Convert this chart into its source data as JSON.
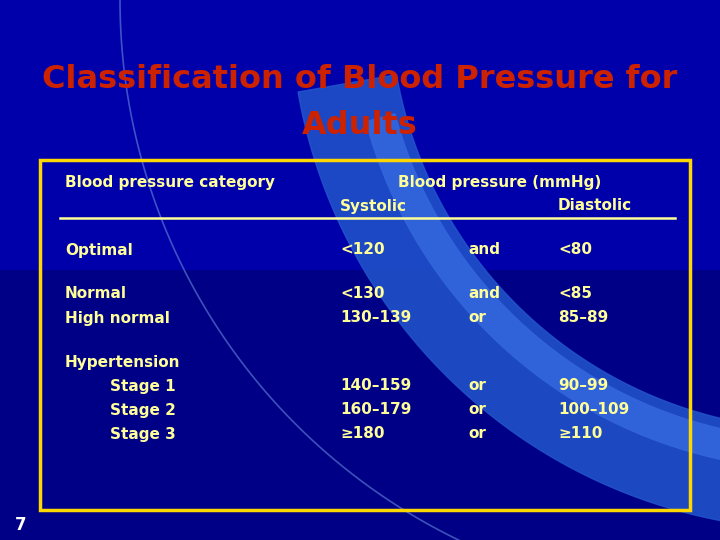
{
  "title_line1": "Classification of Blood Pressure for",
  "title_line2": "Adults",
  "title_color": "#CC2200",
  "bg_color": "#0000AA",
  "bg_dark": "#000066",
  "table_border_color": "#FFD700",
  "text_color": "#FFFF99",
  "header_col1": "Blood pressure category",
  "header_mmhg": "Blood pressure (mmHg)",
  "header_systolic": "Systolic",
  "header_diastolic": "Diastolic",
  "page_number": "7",
  "swoosh_color": "#2255CC",
  "swoosh_color2": "#3366DD",
  "rows": [
    {
      "category": "Optimal",
      "indent": 0,
      "systolic": "<120",
      "connector": "and",
      "diastolic": "<80"
    },
    {
      "category": "Normal",
      "indent": 0,
      "systolic": "<130",
      "connector": "and",
      "diastolic": "<85"
    },
    {
      "category": "High normal",
      "indent": 0,
      "systolic": "130–139",
      "connector": "or",
      "diastolic": "85–89"
    },
    {
      "category": "Hypertension",
      "indent": 0,
      "systolic": "",
      "connector": "",
      "diastolic": ""
    },
    {
      "category": "Stage 1",
      "indent": 1,
      "systolic": "140–159",
      "connector": "or",
      "diastolic": "90–99"
    },
    {
      "category": "Stage 2",
      "indent": 1,
      "systolic": "160–179",
      "connector": "or",
      "diastolic": "100–109"
    },
    {
      "category": "Stage 3",
      "indent": 1,
      "systolic": "≥180",
      "connector": "or",
      "diastolic": "≥110"
    }
  ]
}
